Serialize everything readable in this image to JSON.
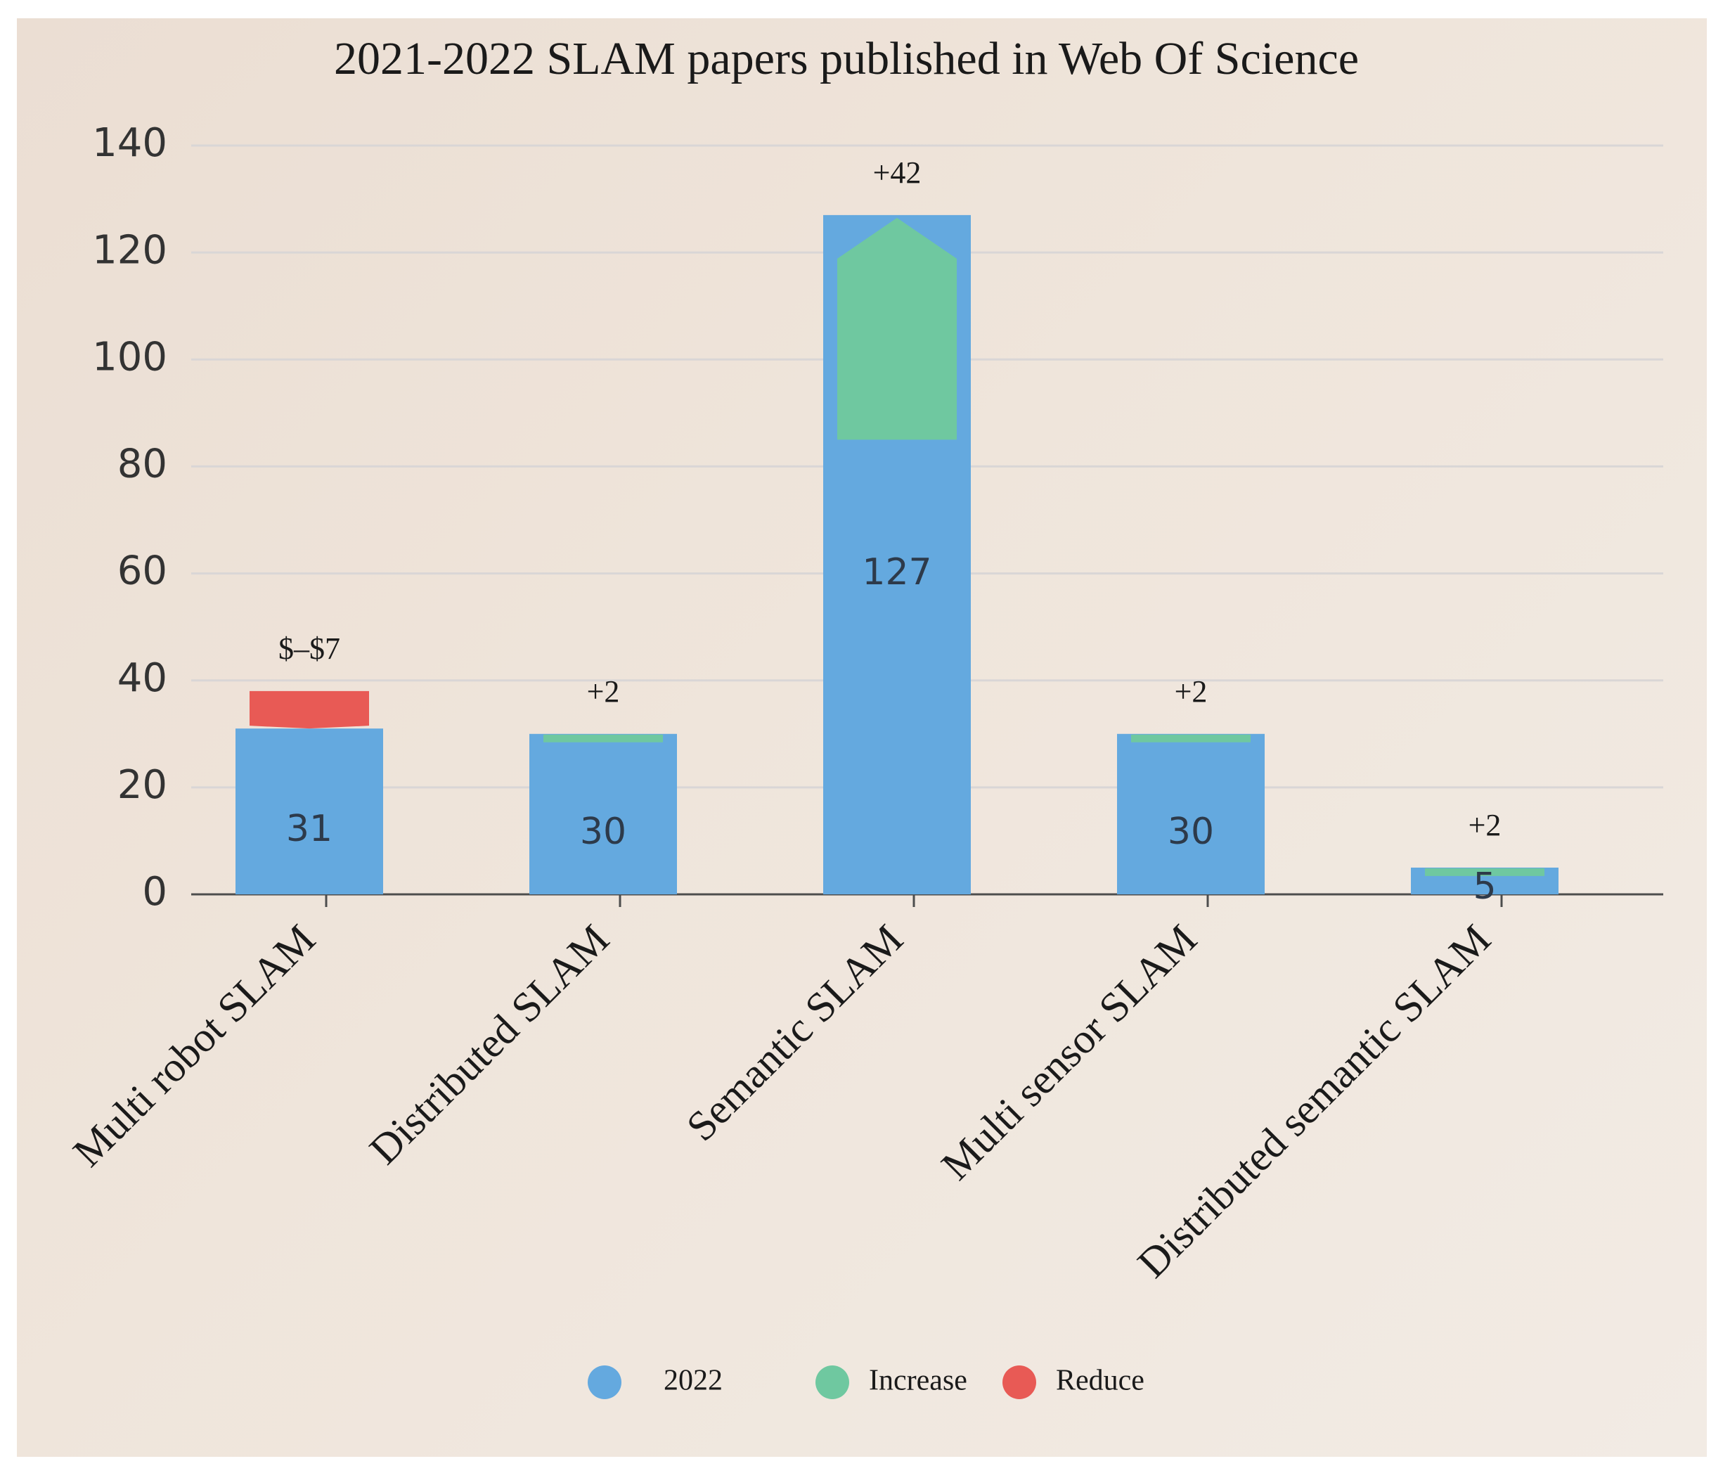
{
  "chart_data": {
    "type": "bar",
    "title": "2021-2022 SLAM papers published in Web Of Science",
    "xlabel": "",
    "ylabel": "",
    "ylim": [
      0,
      140
    ],
    "yticks": [
      0,
      20,
      40,
      60,
      80,
      100,
      120,
      140
    ],
    "grid": true,
    "categories": [
      "Multi robot SLAM",
      "Distributed SLAM",
      "Semantic SLAM",
      "Multi sensor SLAM",
      "Distributed semantic SLAM"
    ],
    "series": [
      {
        "name": "2022",
        "values": [
          31,
          30,
          127,
          30,
          5
        ],
        "color": "#64a9df"
      },
      {
        "name": "Increase",
        "values": [
          0,
          2,
          42,
          2,
          2
        ],
        "color": "#6fc8a0"
      },
      {
        "name": "Reduce",
        "values": [
          7,
          0,
          0,
          0,
          0
        ],
        "color": "#e85a55"
      }
    ],
    "value_labels": [
      "31",
      "30",
      "127",
      "30",
      "5"
    ],
    "change_labels": [
      "$–$7",
      "+2",
      "+42",
      "+2",
      "+2"
    ],
    "legend": {
      "position": "bottom",
      "items": [
        {
          "label": "2022",
          "color": "#64a9df"
        },
        {
          "label": "Increase",
          "color": "#6fc8a0"
        },
        {
          "label": "Reduce",
          "color": "#e85a55"
        }
      ]
    }
  }
}
